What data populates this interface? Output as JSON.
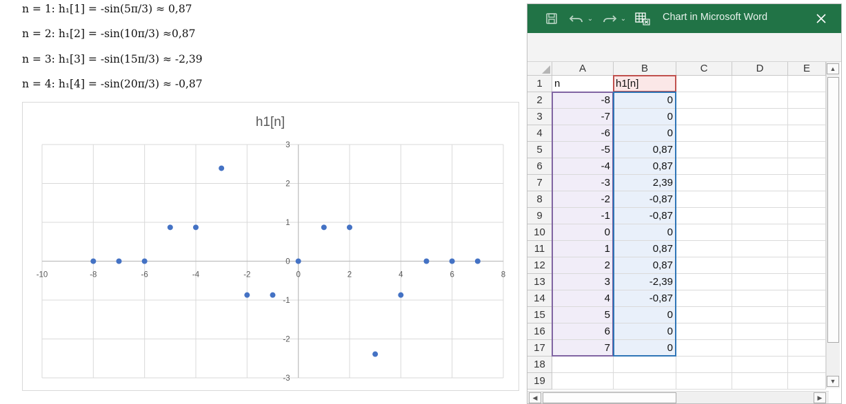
{
  "document": {
    "equations": [
      "n = 1: h₁[1] = -sin(5π/3) ≈ 0,87",
      "n = 2: h₁[2] = -sin(10π/3) ≈0,87",
      "n = 3: h₁[3] = -sin(15π/3) ≈ -2,39",
      "n = 4: h₁[4] = -sin(20π/3) ≈ -0,87"
    ]
  },
  "chart_data": {
    "type": "scatter",
    "title": "h1[n]",
    "xlabel": "",
    "ylabel": "",
    "xlim": [
      -10,
      8
    ],
    "ylim": [
      -3,
      3
    ],
    "xticks": [
      -10,
      -8,
      -6,
      -4,
      -2,
      0,
      2,
      4,
      6,
      8
    ],
    "yticks": [
      3,
      2,
      1,
      0,
      -1,
      -2,
      -3
    ],
    "grid": true,
    "legend": "none",
    "marker_color": "#4472c4",
    "series": [
      {
        "x": [
          -8,
          -7,
          -6,
          -5,
          -4,
          -3,
          -2,
          -1,
          0,
          1,
          2,
          3,
          4,
          5,
          6,
          7
        ],
        "y": [
          0,
          0,
          0,
          0.87,
          0.87,
          2.39,
          -0.87,
          -0.87,
          0,
          0.87,
          0.87,
          -2.39,
          -0.87,
          0,
          0,
          0
        ]
      }
    ]
  },
  "excel": {
    "window_title": "Chart in Microsoft Word",
    "accent_color": "#217346",
    "icons": {
      "save": "save-icon",
      "undo": "undo-icon",
      "redo": "redo-icon",
      "edit_data": "edit-data-in-excel-icon",
      "close": "close-icon"
    },
    "columns": [
      "A",
      "B",
      "C",
      "D",
      "E"
    ],
    "rows": [
      "1",
      "2",
      "3",
      "4",
      "5",
      "6",
      "7",
      "8",
      "9",
      "10",
      "11",
      "12",
      "13",
      "14",
      "15",
      "16",
      "17",
      "18",
      "19"
    ],
    "header_row": [
      "n",
      "h1[n]"
    ],
    "data_rows": [
      [
        "-8",
        "0"
      ],
      [
        "-7",
        "0"
      ],
      [
        "-6",
        "0"
      ],
      [
        "-5",
        "0,87"
      ],
      [
        "-4",
        "0,87"
      ],
      [
        "-3",
        "2,39"
      ],
      [
        "-2",
        "-0,87"
      ],
      [
        "-1",
        "-0,87"
      ],
      [
        "0",
        "0"
      ],
      [
        "1",
        "0,87"
      ],
      [
        "2",
        "0,87"
      ],
      [
        "3",
        "-2,39"
      ],
      [
        "4",
        "-0,87"
      ],
      [
        "5",
        "0"
      ],
      [
        "6",
        "0"
      ],
      [
        "7",
        "0"
      ]
    ]
  }
}
